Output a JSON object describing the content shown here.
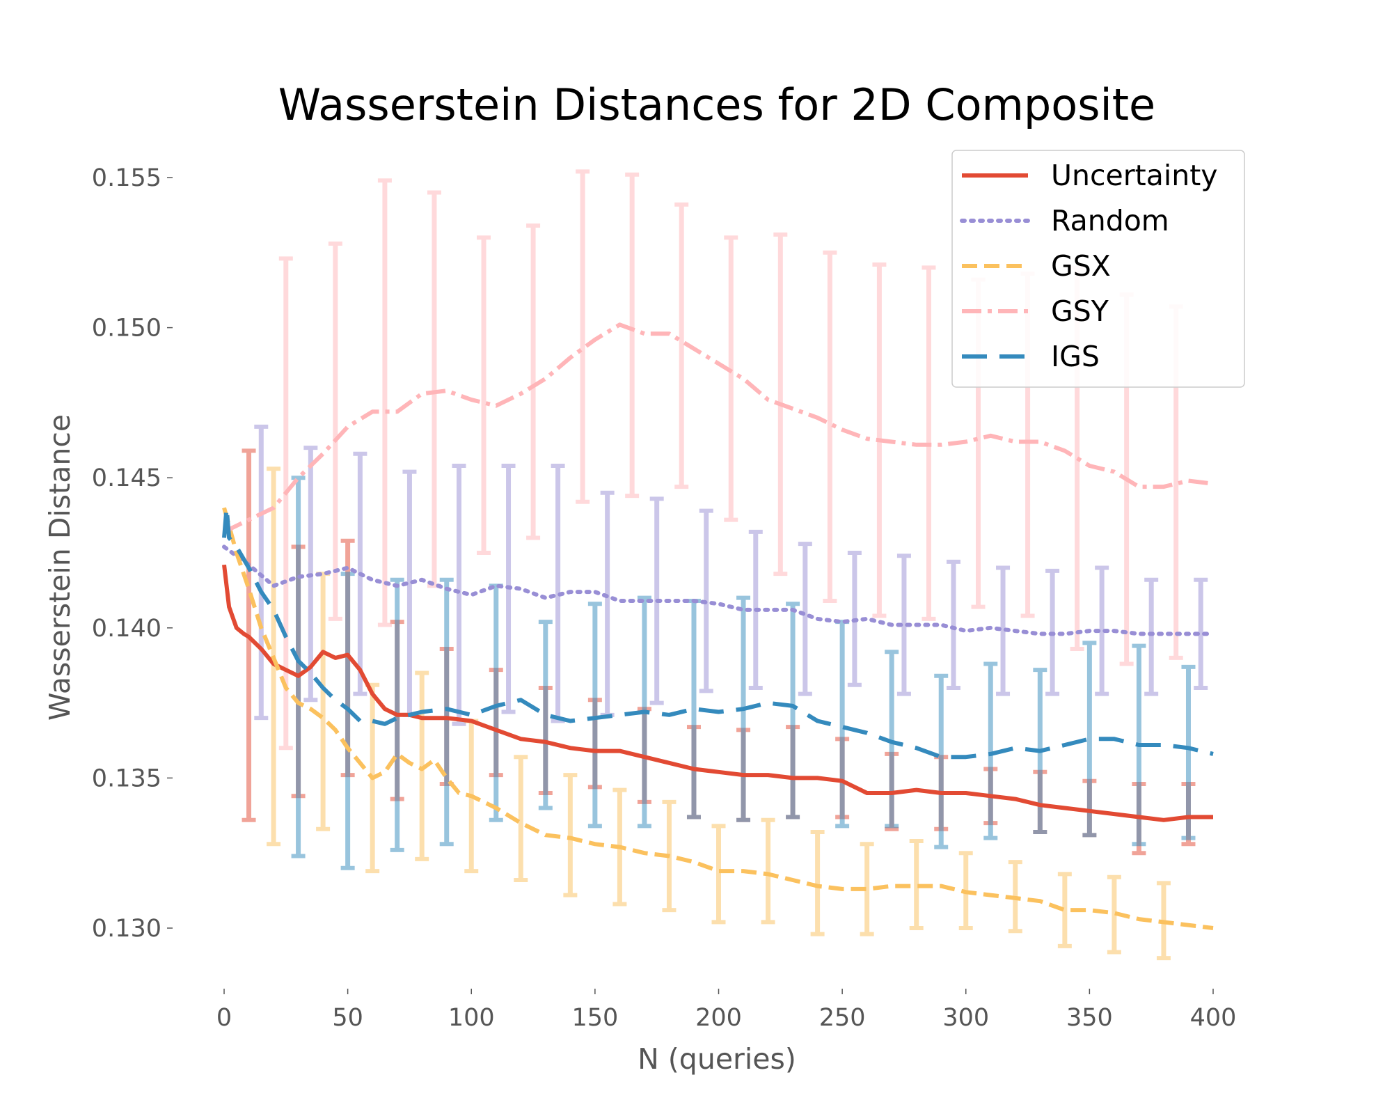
{
  "chart_data": {
    "type": "line",
    "title": "Wasserstein Distances for 2D Composite",
    "xlabel": "N (queries)",
    "ylabel": "Wasserstein Distance",
    "xlim": [
      -4,
      402
    ],
    "ylim": [
      0.1284,
      0.1562
    ],
    "x_ticks": [
      0,
      50,
      100,
      150,
      200,
      250,
      300,
      350,
      400
    ],
    "x_tick_labels": [
      "0",
      "50",
      "100",
      "150",
      "200",
      "250",
      "300",
      "350",
      "400"
    ],
    "y_ticks": [
      0.13,
      0.135,
      0.14,
      0.145,
      0.15,
      0.155
    ],
    "y_tick_labels": [
      "0.130",
      "0.135",
      "0.140",
      "0.145",
      "0.150",
      "0.155"
    ],
    "grid": false,
    "legend_position": "top-right",
    "series": [
      {
        "name": "Uncertainty",
        "color": "#e24a33",
        "style": "solid",
        "x": [
          0,
          2,
          5,
          8,
          10,
          15,
          20,
          25,
          30,
          35,
          40,
          45,
          50,
          55,
          60,
          65,
          70,
          75,
          80,
          90,
          100,
          110,
          120,
          130,
          140,
          150,
          160,
          170,
          180,
          190,
          200,
          210,
          220,
          230,
          240,
          250,
          260,
          270,
          280,
          290,
          300,
          310,
          320,
          330,
          340,
          350,
          360,
          370,
          380,
          390,
          400
        ],
        "y": [
          0.1421,
          0.1407,
          0.14,
          0.1398,
          0.1397,
          0.1393,
          0.1388,
          0.1386,
          0.1384,
          0.1387,
          0.1392,
          0.139,
          0.1391,
          0.1386,
          0.1378,
          0.1373,
          0.1371,
          0.1371,
          0.137,
          0.137,
          0.1369,
          0.1366,
          0.1363,
          0.1362,
          0.136,
          0.1359,
          0.1359,
          0.1357,
          0.1355,
          0.1353,
          0.1352,
          0.1351,
          0.1351,
          0.135,
          0.135,
          0.1349,
          0.1345,
          0.1345,
          0.1346,
          0.1345,
          0.1345,
          0.1344,
          0.1343,
          0.1341,
          0.134,
          0.1339,
          0.1338,
          0.1337,
          0.1336,
          0.1337,
          0.1337
        ],
        "errorbars": {
          "x": [
            10,
            30,
            50,
            70,
            90,
            110,
            130,
            150,
            170,
            190,
            210,
            230,
            250,
            270,
            290,
            310,
            330,
            350,
            370,
            390
          ],
          "lower": [
            0.1336,
            0.1344,
            0.1351,
            0.1343,
            0.1348,
            0.1351,
            0.1345,
            0.1347,
            0.1342,
            0.1337,
            0.1336,
            0.1337,
            0.1337,
            0.1333,
            0.1333,
            0.1335,
            0.1332,
            0.1331,
            0.1325,
            0.1328
          ],
          "upper": [
            0.1459,
            0.1427,
            0.1429,
            0.1402,
            0.1393,
            0.1386,
            0.138,
            0.1376,
            0.1373,
            0.1367,
            0.1366,
            0.1367,
            0.1363,
            0.1358,
            0.1357,
            0.1353,
            0.1352,
            0.1349,
            0.1348,
            0.1348
          ]
        }
      },
      {
        "name": "Random",
        "color": "#988ed5",
        "style": "dotted",
        "x": [
          0,
          10,
          20,
          30,
          40,
          50,
          60,
          70,
          80,
          90,
          100,
          110,
          120,
          130,
          140,
          150,
          160,
          170,
          180,
          190,
          200,
          210,
          220,
          230,
          240,
          250,
          260,
          270,
          280,
          290,
          300,
          310,
          320,
          330,
          340,
          350,
          360,
          370,
          380,
          390,
          400
        ],
        "y": [
          0.1427,
          0.1421,
          0.1414,
          0.1417,
          0.1418,
          0.142,
          0.1416,
          0.1414,
          0.1416,
          0.1413,
          0.1411,
          0.1414,
          0.1413,
          0.141,
          0.1412,
          0.1412,
          0.1409,
          0.1409,
          0.1409,
          0.1409,
          0.1408,
          0.1406,
          0.1406,
          0.1406,
          0.1403,
          0.1402,
          0.1403,
          0.1401,
          0.1401,
          0.1401,
          0.1399,
          0.14,
          0.1399,
          0.1398,
          0.1398,
          0.1399,
          0.1399,
          0.1398,
          0.1398,
          0.1398,
          0.1398
        ],
        "errorbars": {
          "x": [
            15,
            35,
            55,
            75,
            95,
            115,
            135,
            155,
            175,
            195,
            215,
            235,
            255,
            275,
            295,
            315,
            335,
            355,
            375,
            395
          ],
          "lower": [
            0.137,
            0.1376,
            0.1378,
            0.1371,
            0.1368,
            0.1372,
            0.1369,
            0.1371,
            0.1375,
            0.1379,
            0.138,
            0.1378,
            0.1381,
            0.1378,
            0.138,
            0.1378,
            0.1378,
            0.1378,
            0.1378,
            0.138
          ],
          "upper": [
            0.1467,
            0.146,
            0.1458,
            0.1452,
            0.1454,
            0.1454,
            0.1454,
            0.1445,
            0.1443,
            0.1439,
            0.1432,
            0.1428,
            0.1425,
            0.1424,
            0.1422,
            0.142,
            0.1419,
            0.142,
            0.1416,
            0.1416
          ]
        }
      },
      {
        "name": "GSX",
        "color": "#fbc15e",
        "style": "dashed",
        "x": [
          0,
          5,
          10,
          15,
          20,
          25,
          30,
          35,
          40,
          45,
          50,
          55,
          60,
          65,
          70,
          75,
          80,
          85,
          90,
          95,
          100,
          110,
          120,
          130,
          140,
          150,
          160,
          170,
          180,
          190,
          200,
          210,
          220,
          230,
          240,
          250,
          260,
          270,
          280,
          290,
          300,
          310,
          320,
          330,
          340,
          350,
          360,
          370,
          380,
          390,
          400
        ],
        "y": [
          0.144,
          0.1425,
          0.1413,
          0.14,
          0.139,
          0.138,
          0.1375,
          0.1373,
          0.137,
          0.1366,
          0.136,
          0.1355,
          0.135,
          0.1352,
          0.1358,
          0.1355,
          0.1353,
          0.1356,
          0.135,
          0.1345,
          0.1344,
          0.134,
          0.1335,
          0.1331,
          0.133,
          0.1328,
          0.1327,
          0.1325,
          0.1324,
          0.1322,
          0.1319,
          0.1319,
          0.1318,
          0.1316,
          0.1314,
          0.1313,
          0.1313,
          0.1314,
          0.1314,
          0.1314,
          0.1312,
          0.1311,
          0.131,
          0.1309,
          0.1306,
          0.1306,
          0.1305,
          0.1303,
          0.1302,
          0.1301,
          0.13
        ],
        "errorbars": {
          "x": [
            20,
            40,
            60,
            80,
            100,
            120,
            140,
            160,
            180,
            200,
            220,
            240,
            260,
            280,
            300,
            320,
            340,
            360,
            380
          ],
          "lower": [
            0.1328,
            0.1333,
            0.1319,
            0.1323,
            0.1319,
            0.1316,
            0.1311,
            0.1308,
            0.1306,
            0.1302,
            0.1302,
            0.1298,
            0.1298,
            0.13,
            0.13,
            0.1299,
            0.1294,
            0.1292,
            0.129
          ],
          "upper": [
            0.1453,
            0.1418,
            0.1381,
            0.1385,
            0.1369,
            0.1357,
            0.1351,
            0.1346,
            0.1342,
            0.1334,
            0.1336,
            0.1332,
            0.1328,
            0.1329,
            0.1325,
            0.1322,
            0.1318,
            0.1317,
            0.1315
          ]
        }
      },
      {
        "name": "GSY",
        "color": "#ffb5b8",
        "style": "dashdot",
        "x": [
          0,
          10,
          20,
          30,
          40,
          50,
          60,
          70,
          80,
          90,
          100,
          110,
          120,
          130,
          140,
          150,
          160,
          170,
          180,
          190,
          200,
          210,
          220,
          230,
          240,
          250,
          260,
          270,
          280,
          290,
          300,
          310,
          320,
          330,
          340,
          350,
          360,
          370,
          380,
          390,
          400
        ],
        "y": [
          0.1432,
          0.1436,
          0.144,
          0.145,
          0.1458,
          0.1467,
          0.1472,
          0.1472,
          0.1478,
          0.1479,
          0.1476,
          0.1474,
          0.1478,
          0.1483,
          0.149,
          0.1496,
          0.1501,
          0.1498,
          0.1498,
          0.1493,
          0.1488,
          0.1483,
          0.1476,
          0.1473,
          0.147,
          0.1466,
          0.1463,
          0.1462,
          0.1461,
          0.1461,
          0.1462,
          0.1464,
          0.1462,
          0.1462,
          0.1459,
          0.1454,
          0.1452,
          0.1447,
          0.1447,
          0.1449,
          0.1448
        ],
        "errorbars": {
          "x": [
            25,
            45,
            65,
            85,
            105,
            125,
            145,
            165,
            185,
            205,
            225,
            245,
            265,
            285,
            305,
            325,
            345,
            365,
            385
          ],
          "lower": [
            0.136,
            0.1403,
            0.1401,
            0.1414,
            0.1425,
            0.143,
            0.1442,
            0.1444,
            0.1447,
            0.1436,
            0.1418,
            0.1409,
            0.1404,
            0.1403,
            0.1407,
            0.1404,
            0.1393,
            0.1388,
            0.139
          ],
          "upper": [
            0.1523,
            0.1528,
            0.1549,
            0.1545,
            0.153,
            0.1534,
            0.1552,
            0.1551,
            0.1541,
            0.153,
            0.1531,
            0.1525,
            0.1521,
            0.152,
            0.1516,
            0.1518,
            0.152,
            0.1511,
            0.1507
          ]
        }
      },
      {
        "name": "IGS",
        "color": "#348abd",
        "style": "longdash",
        "x": [
          0,
          1,
          2,
          5,
          10,
          15,
          20,
          25,
          30,
          35,
          40,
          45,
          50,
          55,
          60,
          65,
          70,
          75,
          80,
          90,
          100,
          110,
          120,
          130,
          140,
          150,
          160,
          170,
          180,
          190,
          200,
          210,
          220,
          230,
          240,
          250,
          260,
          270,
          280,
          290,
          300,
          310,
          320,
          330,
          340,
          350,
          360,
          370,
          380,
          390,
          400
        ],
        "y": [
          0.143,
          0.144,
          0.143,
          0.1427,
          0.142,
          0.1412,
          0.1406,
          0.1397,
          0.1389,
          0.1385,
          0.138,
          0.1376,
          0.1373,
          0.1369,
          0.1369,
          0.1368,
          0.137,
          0.1371,
          0.1372,
          0.1373,
          0.1371,
          0.1374,
          0.1376,
          0.1371,
          0.1369,
          0.137,
          0.1371,
          0.1372,
          0.1371,
          0.1373,
          0.1372,
          0.1373,
          0.1375,
          0.1374,
          0.1369,
          0.1367,
          0.1365,
          0.1362,
          0.136,
          0.1357,
          0.1357,
          0.1358,
          0.136,
          0.1359,
          0.1361,
          0.1363,
          0.1363,
          0.1361,
          0.1361,
          0.136,
          0.1358
        ],
        "errorbars": {
          "x": [
            30,
            50,
            70,
            90,
            110,
            130,
            150,
            170,
            190,
            210,
            230,
            250,
            270,
            290,
            310,
            330,
            350,
            370,
            390
          ],
          "lower": [
            0.1324,
            0.132,
            0.1326,
            0.1328,
            0.1336,
            0.134,
            0.1334,
            0.1334,
            0.1337,
            0.1336,
            0.1337,
            0.1334,
            0.1334,
            0.1327,
            0.133,
            0.1332,
            0.1331,
            0.1328,
            0.133
          ],
          "upper": [
            0.145,
            0.1418,
            0.1416,
            0.1416,
            0.1414,
            0.1402,
            0.1408,
            0.141,
            0.1409,
            0.141,
            0.1408,
            0.1402,
            0.1392,
            0.1384,
            0.1388,
            0.1386,
            0.1395,
            0.1394,
            0.1387
          ]
        }
      }
    ]
  }
}
